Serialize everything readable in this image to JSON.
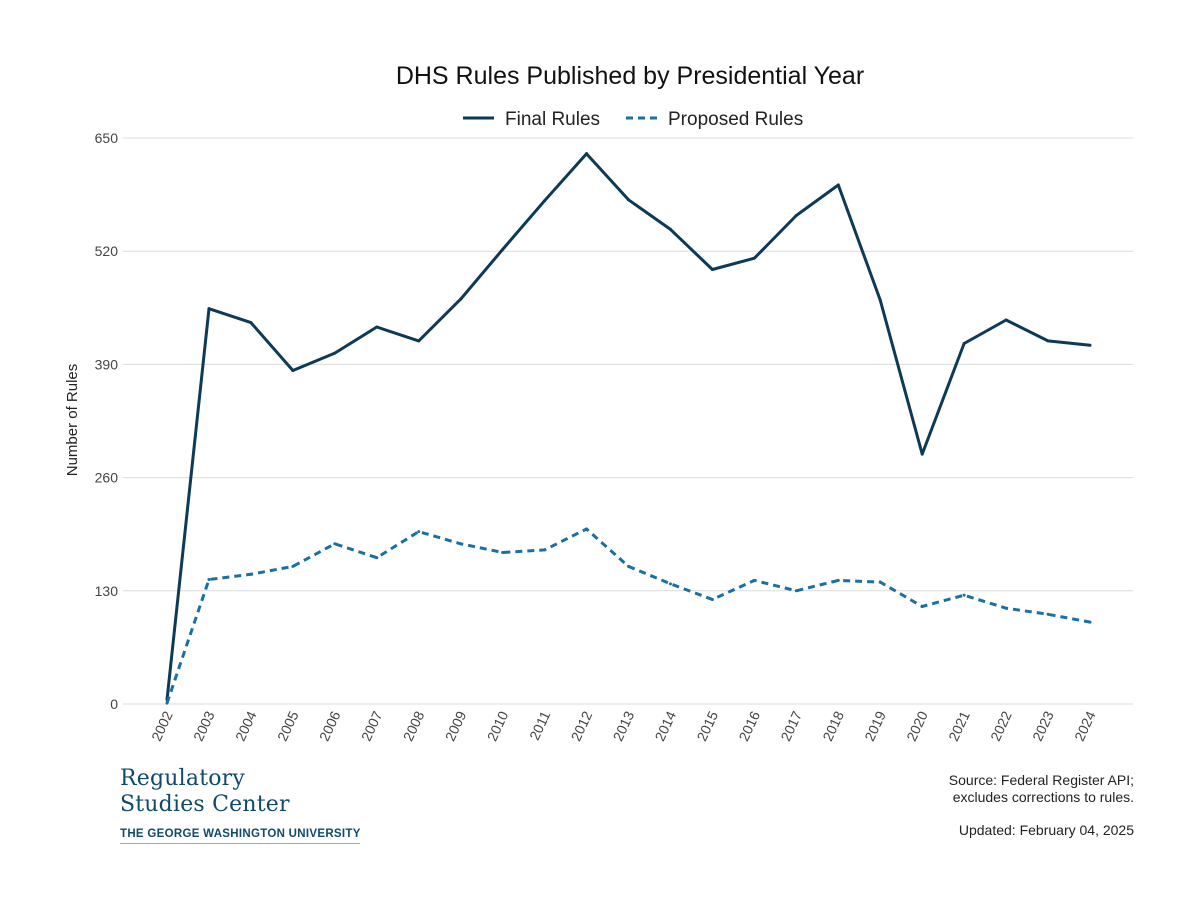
{
  "chart_data": {
    "type": "line",
    "title": "DHS Rules Published by Presidential Year",
    "xlabel": "",
    "ylabel": "Number of Rules",
    "ylim": [
      0,
      650
    ],
    "yticks": [
      0,
      130,
      260,
      390,
      520,
      650
    ],
    "grid": true,
    "legend_position": "top-center",
    "categories": [
      "2002",
      "2003",
      "2004",
      "2005",
      "2006",
      "2007",
      "2008",
      "2009",
      "2010",
      "2011",
      "2012",
      "2013",
      "2014",
      "2015",
      "2016",
      "2017",
      "2018",
      "2019",
      "2020",
      "2021",
      "2022",
      "2023",
      "2024"
    ],
    "series": [
      {
        "name": "Final Rules",
        "style": "solid",
        "color": "#0d3a56",
        "values": [
          5,
          454,
          438,
          383,
          403,
          433,
          417,
          465,
          522,
          578,
          632,
          579,
          545,
          499,
          512,
          561,
          596,
          464,
          287,
          414,
          441,
          417,
          412
        ]
      },
      {
        "name": "Proposed Rules",
        "style": "dashed",
        "color": "#1a6fa3",
        "values": [
          1,
          143,
          149,
          158,
          184,
          168,
          198,
          184,
          174,
          177,
          201,
          158,
          138,
          120,
          142,
          130,
          142,
          140,
          112,
          125,
          110,
          103,
          94
        ]
      }
    ]
  },
  "footer": {
    "logo_line1": "Regulatory",
    "logo_line2": "Studies Center",
    "logo_university": "THE GEORGE WASHINGTON UNIVERSITY",
    "source_line1": "Source: Federal Register API;",
    "source_line2": "excludes corrections to rules.",
    "updated": "Updated: February 04, 2025"
  }
}
